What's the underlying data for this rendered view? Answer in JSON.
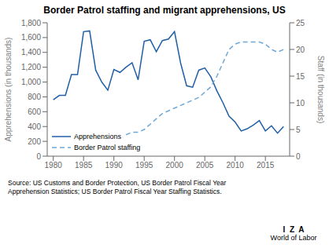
{
  "chart_data": {
    "type": "line",
    "title": "Border Patrol staffing and migrant apprehensions, US",
    "x": [
      1980,
      1981,
      1982,
      1983,
      1984,
      1985,
      1986,
      1987,
      1988,
      1989,
      1990,
      1991,
      1992,
      1993,
      1994,
      1995,
      1996,
      1997,
      1998,
      1999,
      2000,
      2001,
      2002,
      2003,
      2004,
      2005,
      2006,
      2007,
      2008,
      2009,
      2010,
      2011,
      2012,
      2013,
      2014,
      2015,
      2016,
      2017,
      2018
    ],
    "series": [
      {
        "name": "Apprehensions",
        "color": "#1f5fa6",
        "line_style": "solid",
        "values": [
          760,
          820,
          820,
          1100,
          1100,
          1680,
          1690,
          1160,
          1000,
          890,
          1170,
          1130,
          1200,
          1260,
          1030,
          1550,
          1570,
          1410,
          1560,
          1580,
          1680,
          1260,
          950,
          930,
          1160,
          1190,
          1070,
          880,
          720,
          540,
          460,
          340,
          370,
          420,
          480,
          340,
          410,
          310,
          400
        ]
      },
      {
        "name": "Border Patrol staffing",
        "color": "#6fa8d6",
        "line_style": "dashed",
        "axis": "y2",
        "values": [
          null,
          null,
          null,
          null,
          null,
          null,
          null,
          null,
          null,
          null,
          null,
          null,
          4,
          4.5,
          4.5,
          5,
          6,
          7,
          8,
          8.5,
          9,
          9.5,
          10,
          10.5,
          11,
          12,
          13,
          15,
          17.5,
          20,
          21,
          21.4,
          21.4,
          21.4,
          21.4,
          21,
          20,
          19.5,
          20
        ]
      }
    ],
    "xlim": [
      1979,
      2019
    ],
    "xticks": [
      1980,
      1985,
      1990,
      1995,
      2000,
      2005,
      2010,
      2015
    ],
    "ylim": [
      0,
      1800
    ],
    "yticks": [
      0,
      200,
      400,
      600,
      800,
      {
        "value": 1000,
        "label": "1,000"
      },
      {
        "value": 1200,
        "label": "1,200"
      },
      {
        "value": 1400,
        "label": "1,400"
      },
      {
        "value": 1600,
        "label": "1,600"
      },
      {
        "value": 1800,
        "label": "1,800"
      }
    ],
    "y2lim": [
      0,
      25
    ],
    "y2ticks": [
      0,
      5,
      10,
      15,
      20,
      25
    ],
    "ylabel": "Apprehensions (in thousands)",
    "y2label": "Staff (in thousands)",
    "legend": "lower left",
    "grid": false,
    "annotations": [
      "Source: US Customs and Border Protection, US Border Patrol Fiscal Year\nApprehension Statistics; US Border Patrol Fiscal Year Staffing Statistics.",
      "I  Z  A",
      "World of Labor"
    ]
  }
}
